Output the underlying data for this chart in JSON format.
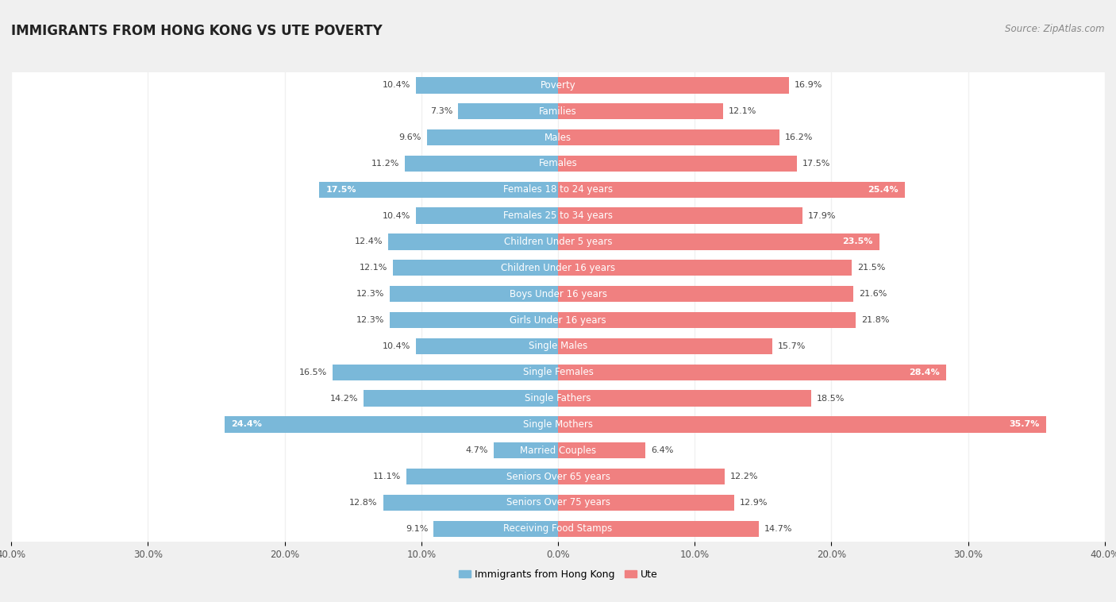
{
  "title": "IMMIGRANTS FROM HONG KONG VS UTE POVERTY",
  "source": "Source: ZipAtlas.com",
  "categories": [
    "Poverty",
    "Families",
    "Males",
    "Females",
    "Females 18 to 24 years",
    "Females 25 to 34 years",
    "Children Under 5 years",
    "Children Under 16 years",
    "Boys Under 16 years",
    "Girls Under 16 years",
    "Single Males",
    "Single Females",
    "Single Fathers",
    "Single Mothers",
    "Married Couples",
    "Seniors Over 65 years",
    "Seniors Over 75 years",
    "Receiving Food Stamps"
  ],
  "left_values": [
    10.4,
    7.3,
    9.6,
    11.2,
    17.5,
    10.4,
    12.4,
    12.1,
    12.3,
    12.3,
    10.4,
    16.5,
    14.2,
    24.4,
    4.7,
    11.1,
    12.8,
    9.1
  ],
  "right_values": [
    16.9,
    12.1,
    16.2,
    17.5,
    25.4,
    17.9,
    23.5,
    21.5,
    21.6,
    21.8,
    15.7,
    28.4,
    18.5,
    35.7,
    6.4,
    12.2,
    12.9,
    14.7
  ],
  "left_color": "#7ab8d9",
  "right_color": "#f08080",
  "left_label": "Immigrants from Hong Kong",
  "right_label": "Ute",
  "axis_max": 40.0,
  "background_color": "#f0f0f0",
  "bar_background": "#ffffff",
  "title_fontsize": 12,
  "source_fontsize": 8.5,
  "cat_fontsize": 8.5,
  "value_fontsize": 8,
  "axis_fontsize": 8.5,
  "legend_fontsize": 9
}
